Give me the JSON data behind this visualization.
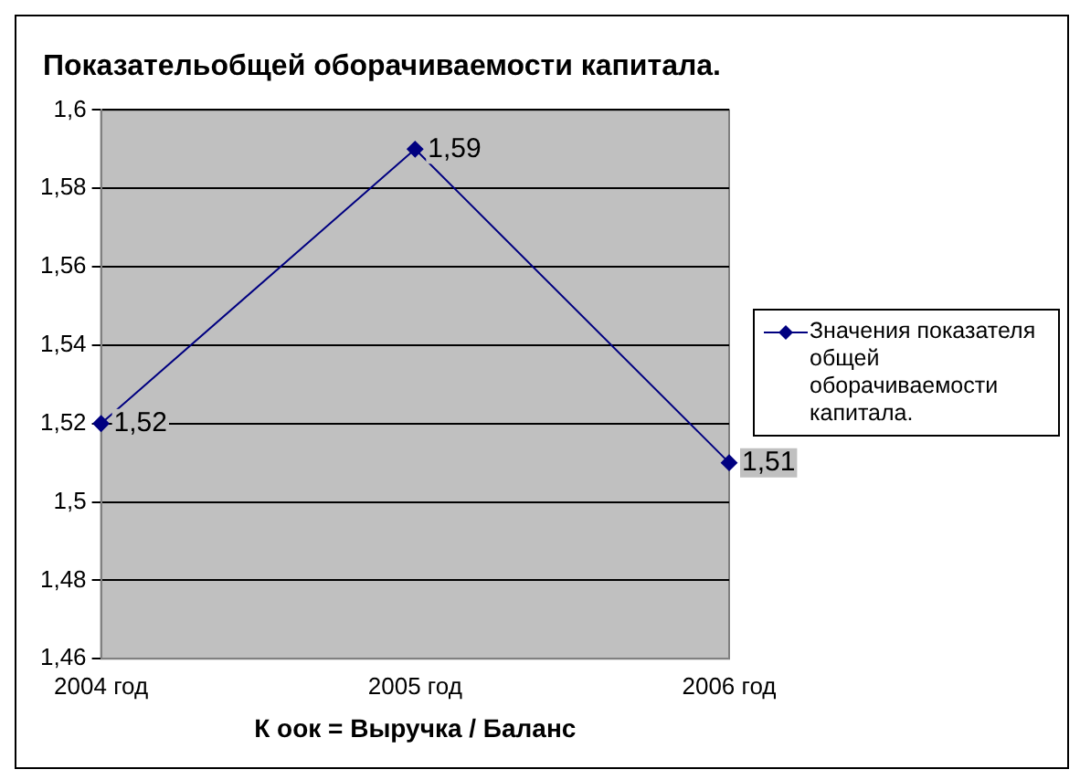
{
  "chart_data": {
    "type": "line",
    "title": "Показательобщей оборачиваемости капитала.",
    "xlabel": "К оок = Выручка / Баланс",
    "categories": [
      "2004 год",
      "2005 год",
      "2006 год"
    ],
    "series": [
      {
        "name": "Значения показателя общей оборачиваемости капитала.",
        "color": "#000080",
        "values": [
          1.52,
          1.59,
          1.51
        ],
        "value_labels": [
          "1,52",
          "1,59",
          "1,51"
        ]
      }
    ],
    "ylim": [
      1.46,
      1.6
    ],
    "yticks": [
      {
        "value": 1.46,
        "label": "1,46"
      },
      {
        "value": 1.48,
        "label": "1,48"
      },
      {
        "value": 1.5,
        "label": "1,5"
      },
      {
        "value": 1.52,
        "label": "1,52"
      },
      {
        "value": 1.54,
        "label": "1,54"
      },
      {
        "value": 1.56,
        "label": "1,56"
      },
      {
        "value": 1.58,
        "label": "1,58"
      },
      {
        "value": 1.6,
        "label": "1,6"
      }
    ],
    "grid": "y",
    "legend": "right",
    "marker": "diamond",
    "line_style": "solid"
  }
}
